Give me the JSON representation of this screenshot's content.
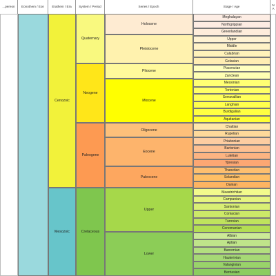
{
  "headers": {
    "eonothem": "Eonothem / Eon",
    "erathem": "Erathem / Era",
    "system": "System / Period",
    "series": "Series / Epoch",
    "stage": "Stage / Age",
    "partial_left": "...pereon",
    "partial_right": "N\nA"
  },
  "colors": {
    "cenozoic": "#f2f23a",
    "mesozoic": "#67c5ca",
    "quaternary": "#f9f97f",
    "neogene": "#ffe619",
    "paleogene": "#fd9a52",
    "cretaceous": "#7fc64e",
    "eon_band": "#9ad9dd"
  },
  "eras": [
    {
      "name": "Cenozoic",
      "color": "#f2f23a"
    },
    {
      "name": "Mesozoic",
      "color": "#67c5ca"
    }
  ],
  "systems": [
    {
      "name": "Quaternary",
      "color": "#f9f97f"
    },
    {
      "name": "Neogene",
      "color": "#ffe619"
    },
    {
      "name": "Paleogene",
      "color": "#fd9a52"
    },
    {
      "name": "Cretaceous",
      "color": "#7fc64e"
    }
  ],
  "series": [
    {
      "name": "Holocene",
      "color": "#feebd2"
    },
    {
      "name": "Pleistocene",
      "color": "#fff2ae"
    },
    {
      "name": "Pliocene",
      "color": "#fff99b"
    },
    {
      "name": "Miocene",
      "color": "#ffff00"
    },
    {
      "name": "Oligocene",
      "color": "#fdc07a"
    },
    {
      "name": "Eocene",
      "color": "#fdb46c"
    },
    {
      "name": "Paleocene",
      "color": "#fda75f"
    },
    {
      "name": "Upper",
      "color": "#a6d84a"
    },
    {
      "name": "Lower",
      "color": "#8ccd57"
    }
  ],
  "stages": [
    {
      "name": "Meghalayan",
      "color": "#fdede4"
    },
    {
      "name": "Northgrippian",
      "color": "#fdece3"
    },
    {
      "name": "Greenlandian",
      "color": "#feecdb"
    },
    {
      "name": "Upper",
      "color": "#fff2d3"
    },
    {
      "name": "Middle",
      "color": "#fff2c7"
    },
    {
      "name": "Calabrian",
      "color": "#fff2ba"
    },
    {
      "name": "Gelasian",
      "color": "#ffedb3"
    },
    {
      "name": "Piacenzian",
      "color": "#ffffbf"
    },
    {
      "name": "Zanclean",
      "color": "#ffffb3"
    },
    {
      "name": "Messinian",
      "color": "#ffff73"
    },
    {
      "name": "Tortonian",
      "color": "#ffff66"
    },
    {
      "name": "Serravallian",
      "color": "#ffff59"
    },
    {
      "name": "Langhian",
      "color": "#ffff4d"
    },
    {
      "name": "Burdigalian",
      "color": "#ffff41"
    },
    {
      "name": "Aquitanian",
      "color": "#ffff33"
    },
    {
      "name": "Chattian",
      "color": "#fee6aa"
    },
    {
      "name": "Rupelian",
      "color": "#fed99a"
    },
    {
      "name": "Priabonian",
      "color": "#fdcda1"
    },
    {
      "name": "Bartonian",
      "color": "#fdc091"
    },
    {
      "name": "Lutetian",
      "color": "#fcb482"
    },
    {
      "name": "Ypresian",
      "color": "#fca773"
    },
    {
      "name": "Thanetian",
      "color": "#fdbf6f"
    },
    {
      "name": "Selandian",
      "color": "#febf65"
    },
    {
      "name": "Danian",
      "color": "#fdb462"
    },
    {
      "name": "Maastrichtian",
      "color": "#f2fa8c"
    },
    {
      "name": "Campanian",
      "color": "#e6f47f"
    },
    {
      "name": "Santonian",
      "color": "#d9ef74"
    },
    {
      "name": "Coniacian",
      "color": "#cce968"
    },
    {
      "name": "Turonian",
      "color": "#bfe35d"
    },
    {
      "name": "Cenomanian",
      "color": "#b3de53"
    },
    {
      "name": "Albian",
      "color": "#ccea97"
    },
    {
      "name": "Aptian",
      "color": "#bfe48a"
    },
    {
      "name": "Barremian",
      "color": "#b3df7f"
    },
    {
      "name": "Hauterivian",
      "color": "#a6d975"
    },
    {
      "name": "Valanginian",
      "color": "#99d36a"
    },
    {
      "name": "Berriasian",
      "color": "#8ccd60"
    }
  ]
}
